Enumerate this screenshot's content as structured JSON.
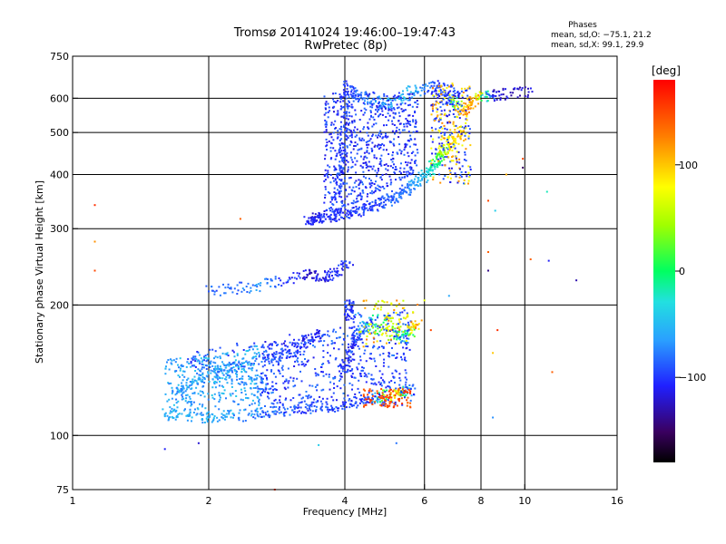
{
  "chart_data": {
    "type": "scatter",
    "title": "Tromsø 20141024 19:46:00–19:47:43",
    "subtitle": "RwPretec (8p)",
    "xlabel": "Frequency [MHz]",
    "ylabel": "Stationary phase Virtual Height [km]",
    "x_scale": "log2",
    "y_scale": "log",
    "xlim": [
      1,
      16
    ],
    "ylim": [
      75,
      750
    ],
    "x_ticks": [
      {
        "value": 1,
        "label": "1"
      },
      {
        "value": 2,
        "label": "2"
      },
      {
        "value": 4,
        "label": "4"
      },
      {
        "value": 6,
        "label": "6"
      },
      {
        "value": 8,
        "label": "8"
      },
      {
        "value": 10,
        "label": "10"
      },
      {
        "value": 16,
        "label": "16"
      }
    ],
    "y_ticks": [
      {
        "value": 75,
        "label": "75"
      },
      {
        "value": 100,
        "label": "100"
      },
      {
        "value": 200,
        "label": "200"
      },
      {
        "value": 300,
        "label": "300"
      },
      {
        "value": 400,
        "label": "400"
      },
      {
        "value": 500,
        "label": "500"
      },
      {
        "value": 600,
        "label": "600"
      },
      {
        "value": 750,
        "label": "750"
      }
    ],
    "grid_x": [
      2,
      4,
      6,
      8,
      10
    ],
    "grid_y": [
      100,
      200,
      300,
      400,
      500,
      600
    ],
    "stats": {
      "heading": "Phases",
      "line_o": "mean, sd,O: −75.1, 21.2",
      "line_x": "mean, sd,X:  99.1, 29.9"
    },
    "colorbar": {
      "label": "[deg]",
      "min": -180,
      "max": 180,
      "ticks": [
        {
          "value": 100,
          "label": "100"
        },
        {
          "value": 0,
          "label": "0"
        },
        {
          "value": -100,
          "label": "−100"
        }
      ]
    },
    "clusters": [
      {
        "name": "F2-trace-lower",
        "points": [
          [
            3.3,
            312,
            -110
          ],
          [
            3.5,
            318,
            -110
          ],
          [
            3.8,
            322,
            -105
          ],
          [
            4.2,
            328,
            -100
          ],
          [
            4.6,
            338,
            -95
          ],
          [
            5.0,
            350,
            -90
          ],
          [
            5.4,
            365,
            -80
          ],
          [
            5.8,
            385,
            -60
          ],
          [
            6.2,
            410,
            -30
          ],
          [
            6.5,
            440,
            20
          ],
          [
            6.8,
            470,
            80
          ],
          [
            7.2,
            500,
            100
          ]
        ]
      },
      {
        "name": "F2-trace-upper",
        "points": [
          [
            3.8,
            330,
            -100
          ],
          [
            3.9,
            400,
            -95
          ],
          [
            4.0,
            500,
            -95
          ],
          [
            4.0,
            640,
            -100
          ],
          [
            4.4,
            600,
            -80
          ],
          [
            5.0,
            580,
            -60
          ],
          [
            5.6,
            620,
            -50
          ],
          [
            6.4,
            640,
            -100
          ],
          [
            6.8,
            600,
            -90
          ],
          [
            7.3,
            560,
            120
          ],
          [
            7.8,
            600,
            110
          ],
          [
            8.5,
            610,
            -120
          ],
          [
            10.2,
            620,
            -120
          ]
        ]
      },
      {
        "name": "F1-layer",
        "points": [
          [
            2.0,
            215,
            -90
          ],
          [
            2.6,
            222,
            -70
          ],
          [
            3.3,
            235,
            -120
          ],
          [
            3.7,
            232,
            -110
          ],
          [
            4.1,
            250,
            -100
          ]
        ]
      },
      {
        "name": "E-trace-main",
        "points": [
          [
            1.6,
            112,
            -60
          ],
          [
            2.0,
            110,
            -60
          ],
          [
            2.6,
            112,
            -80
          ],
          [
            3.2,
            116,
            -90
          ],
          [
            4.0,
            118,
            -100
          ],
          [
            4.6,
            122,
            -90
          ],
          [
            5.2,
            125,
            120
          ],
          [
            5.6,
            128,
            -100
          ],
          [
            4.0,
            140,
            -100
          ],
          [
            4.2,
            165,
            -110
          ],
          [
            4.4,
            178,
            -60
          ],
          [
            5.0,
            175,
            80
          ],
          [
            5.4,
            168,
            -70
          ],
          [
            5.8,
            180,
            120
          ],
          [
            4.1,
            188,
            -110
          ],
          [
            4.1,
            205,
            -100
          ]
        ]
      },
      {
        "name": "E-layer-fill",
        "points": [
          [
            1.7,
            125,
            -70
          ],
          [
            1.9,
            135,
            -60
          ],
          [
            2.3,
            145,
            -80
          ],
          [
            2.8,
            150,
            -90
          ],
          [
            3.2,
            160,
            -100
          ],
          [
            3.5,
            172,
            -110
          ],
          [
            1.8,
            150,
            -100
          ],
          [
            2.2,
            138,
            -70
          ],
          [
            2.8,
            128,
            -80
          ]
        ]
      },
      {
        "name": "scattered",
        "points": [
          [
            1.12,
            340,
            160
          ],
          [
            1.12,
            280,
            120
          ],
          [
            1.12,
            240,
            150
          ],
          [
            2.35,
            316,
            140
          ],
          [
            1.6,
            93,
            -110
          ],
          [
            1.9,
            96,
            -120
          ],
          [
            2.8,
            75,
            160
          ],
          [
            3.5,
            95,
            -40
          ],
          [
            5.2,
            96,
            -80
          ],
          [
            6.8,
            210,
            -60
          ],
          [
            8.3,
            240,
            -140
          ],
          [
            8.3,
            265,
            140
          ],
          [
            8.6,
            330,
            -40
          ],
          [
            8.3,
            348,
            150
          ],
          [
            9.9,
            435,
            150
          ],
          [
            9.9,
            415,
            -150
          ],
          [
            11.2,
            365,
            -20
          ],
          [
            10.3,
            255,
            140
          ],
          [
            11.3,
            253,
            -110
          ],
          [
            13.0,
            228,
            -130
          ],
          [
            11.5,
            140,
            140
          ],
          [
            8.5,
            155,
            100
          ],
          [
            8.5,
            110,
            -70
          ],
          [
            8.7,
            175,
            160
          ],
          [
            6.2,
            175,
            150
          ],
          [
            6.0,
            205,
            70
          ],
          [
            9.1,
            400,
            110
          ]
        ]
      }
    ]
  }
}
